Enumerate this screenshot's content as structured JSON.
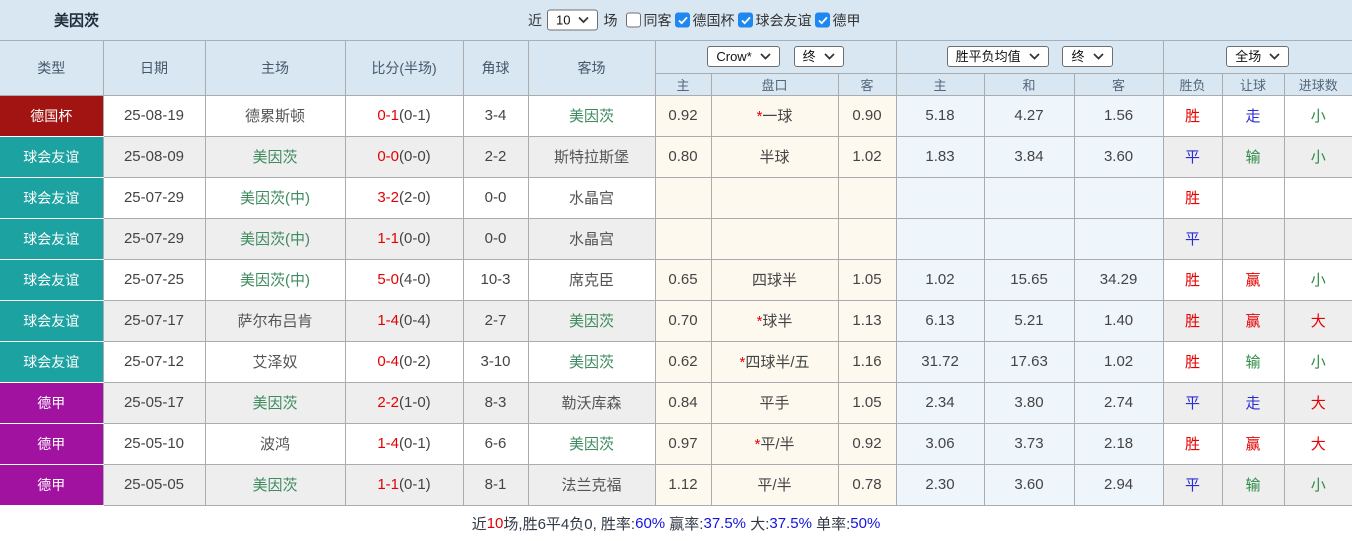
{
  "team": "美因茨",
  "topbar": {
    "recent_label": "近",
    "recent_value": "10",
    "matches_label": "场",
    "filters": [
      {
        "label": "同客",
        "checked": false
      },
      {
        "label": "德国杯",
        "checked": true
      },
      {
        "label": "球会友谊",
        "checked": true
      },
      {
        "label": "德甲",
        "checked": true
      }
    ]
  },
  "table": {
    "main_headers": [
      "类型",
      "日期",
      "主场",
      "比分(半场)",
      "角球",
      "客场"
    ],
    "handicap_selects": {
      "company": "Crow*",
      "time": "终"
    },
    "avg_selects": {
      "name": "胜平负均值",
      "time": "终"
    },
    "scope_select": "全场",
    "sub_headers": [
      "主",
      "盘口",
      "客",
      "主",
      "和",
      "客",
      "胜负",
      "让球",
      "进球数"
    ],
    "star_char": "*",
    "type_colors": {
      "德国杯": "#a21412",
      "球会友谊": "#1da2a2",
      "德甲": "#a112a1"
    },
    "rows": [
      {
        "type": "德国杯",
        "type_color": "#a21412",
        "date": "25-08-19",
        "home": "德累斯顿",
        "home_self": false,
        "score_ft": "0-1",
        "score_ht": "(0-1)",
        "corners": "3-4",
        "away": "美因茨",
        "away_self": true,
        "o1": "0.92",
        "pk_star": true,
        "pankou": "一球",
        "o2": "0.90",
        "a1": "5.18",
        "a2": "4.27",
        "a3": "1.56",
        "res": "胜",
        "res_c": "r",
        "let": "走",
        "let_c": "b",
        "goals": "小",
        "goals_c": "g"
      },
      {
        "type": "球会友谊",
        "type_color": "#1da2a2",
        "date": "25-08-09",
        "home": "美因茨",
        "home_self": true,
        "score_ft": "0-0",
        "score_ht": "(0-0)",
        "corners": "2-2",
        "away": "斯特拉斯堡",
        "away_self": false,
        "o1": "0.80",
        "pk_star": false,
        "pankou": "半球",
        "o2": "1.02",
        "a1": "1.83",
        "a2": "3.84",
        "a3": "3.60",
        "res": "平",
        "res_c": "b",
        "let": "输",
        "let_c": "g",
        "goals": "小",
        "goals_c": "g"
      },
      {
        "type": "球会友谊",
        "type_color": "#1da2a2",
        "date": "25-07-29",
        "home": "美因茨(中)",
        "home_self": true,
        "score_ft": "3-2",
        "score_ht": "(2-0)",
        "corners": "0-0",
        "away": "水晶宫",
        "away_self": false,
        "o1": "",
        "pk_star": false,
        "pankou": "",
        "o2": "",
        "a1": "",
        "a2": "",
        "a3": "",
        "res": "胜",
        "res_c": "r",
        "let": "",
        "let_c": "",
        "goals": "",
        "goals_c": ""
      },
      {
        "type": "球会友谊",
        "type_color": "#1da2a2",
        "date": "25-07-29",
        "home": "美因茨(中)",
        "home_self": true,
        "score_ft": "1-1",
        "score_ht": "(0-0)",
        "corners": "0-0",
        "away": "水晶宫",
        "away_self": false,
        "o1": "",
        "pk_star": false,
        "pankou": "",
        "o2": "",
        "a1": "",
        "a2": "",
        "a3": "",
        "res": "平",
        "res_c": "b",
        "let": "",
        "let_c": "",
        "goals": "",
        "goals_c": ""
      },
      {
        "type": "球会友谊",
        "type_color": "#1da2a2",
        "date": "25-07-25",
        "home": "美因茨(中)",
        "home_self": true,
        "score_ft": "5-0",
        "score_ht": "(4-0)",
        "corners": "10-3",
        "away": "席克臣",
        "away_self": false,
        "o1": "0.65",
        "pk_star": false,
        "pankou": "四球半",
        "o2": "1.05",
        "a1": "1.02",
        "a2": "15.65",
        "a3": "34.29",
        "res": "胜",
        "res_c": "r",
        "let": "赢",
        "let_c": "r",
        "goals": "小",
        "goals_c": "g"
      },
      {
        "type": "球会友谊",
        "type_color": "#1da2a2",
        "date": "25-07-17",
        "home": "萨尔布吕肯",
        "home_self": false,
        "score_ft": "1-4",
        "score_ht": "(0-4)",
        "corners": "2-7",
        "away": "美因茨",
        "away_self": true,
        "o1": "0.70",
        "pk_star": true,
        "pankou": "球半",
        "o2": "1.13",
        "a1": "6.13",
        "a2": "5.21",
        "a3": "1.40",
        "res": "胜",
        "res_c": "r",
        "let": "赢",
        "let_c": "r",
        "goals": "大",
        "goals_c": "r"
      },
      {
        "type": "球会友谊",
        "type_color": "#1da2a2",
        "date": "25-07-12",
        "home": "艾泽奴",
        "home_self": false,
        "score_ft": "0-4",
        "score_ht": "(0-2)",
        "corners": "3-10",
        "away": "美因茨",
        "away_self": true,
        "o1": "0.62",
        "pk_star": true,
        "pankou": "四球半/五",
        "o2": "1.16",
        "a1": "31.72",
        "a2": "17.63",
        "a3": "1.02",
        "res": "胜",
        "res_c": "r",
        "let": "输",
        "let_c": "g",
        "goals": "小",
        "goals_c": "g"
      },
      {
        "type": "德甲",
        "type_color": "#a112a1",
        "date": "25-05-17",
        "home": "美因茨",
        "home_self": true,
        "score_ft": "2-2",
        "score_ht": "(1-0)",
        "corners": "8-3",
        "away": "勒沃库森",
        "away_self": false,
        "o1": "0.84",
        "pk_star": false,
        "pankou": "平手",
        "o2": "1.05",
        "a1": "2.34",
        "a2": "3.80",
        "a3": "2.74",
        "res": "平",
        "res_c": "b",
        "let": "走",
        "let_c": "b",
        "goals": "大",
        "goals_c": "r"
      },
      {
        "type": "德甲",
        "type_color": "#a112a1",
        "date": "25-05-10",
        "home": "波鸿",
        "home_self": false,
        "score_ft": "1-4",
        "score_ht": "(0-1)",
        "corners": "6-6",
        "away": "美因茨",
        "away_self": true,
        "o1": "0.97",
        "pk_star": true,
        "pankou": "平/半",
        "o2": "0.92",
        "a1": "3.06",
        "a2": "3.73",
        "a3": "2.18",
        "res": "胜",
        "res_c": "r",
        "let": "赢",
        "let_c": "r",
        "goals": "大",
        "goals_c": "r"
      },
      {
        "type": "德甲",
        "type_color": "#a112a1",
        "date": "25-05-05",
        "home": "美因茨",
        "home_self": true,
        "score_ft": "1-1",
        "score_ht": "(0-1)",
        "corners": "8-1",
        "away": "法兰克福",
        "away_self": false,
        "o1": "1.12",
        "pk_star": false,
        "pankou": "平/半",
        "o2": "0.78",
        "a1": "2.30",
        "a2": "3.60",
        "a3": "2.94",
        "res": "平",
        "res_c": "b",
        "let": "输",
        "let_c": "g",
        "goals": "小",
        "goals_c": "g"
      }
    ]
  },
  "footer": {
    "segments": [
      {
        "text": "近",
        "color": "plain"
      },
      {
        "text": "10",
        "color": "red"
      },
      {
        "text": "场,胜6平4负0, 胜率:",
        "color": "plain"
      },
      {
        "text": "60%",
        "color": "blue"
      },
      {
        "text": " 赢率:",
        "color": "plain"
      },
      {
        "text": "37.5%",
        "color": "blue"
      },
      {
        "text": " 大:",
        "color": "plain"
      },
      {
        "text": "37.5%",
        "color": "blue"
      },
      {
        "text": " 单率:",
        "color": "plain"
      },
      {
        "text": "50%",
        "color": "blue"
      }
    ]
  }
}
